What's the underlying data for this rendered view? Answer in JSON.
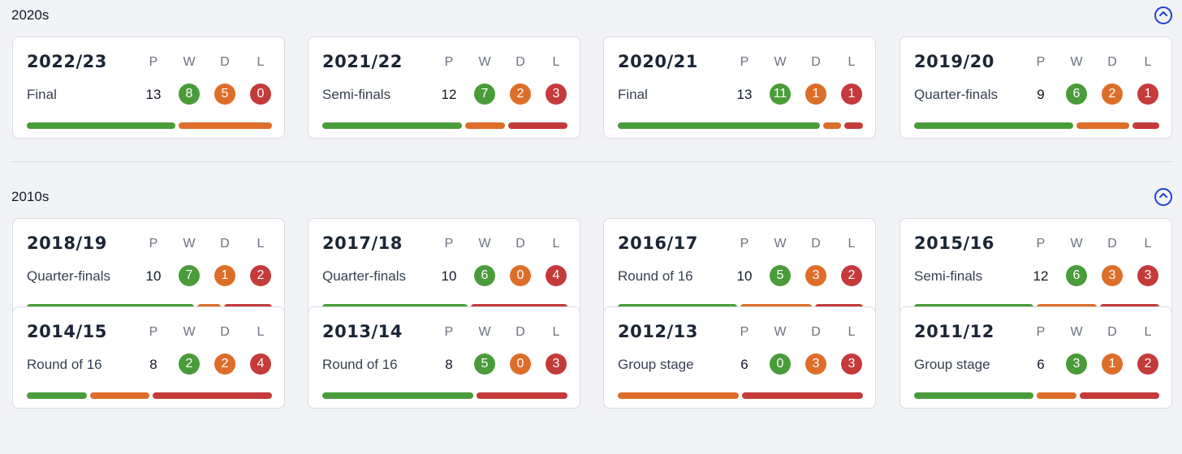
{
  "headers": {
    "p": "P",
    "w": "W",
    "d": "D",
    "l": "L"
  },
  "colors": {
    "win": "#4a9c3a",
    "draw": "#dd6e2a",
    "loss": "#c53a3a",
    "accent": "#1d3fd6"
  },
  "sections": [
    {
      "decade": "2020s",
      "toggle_icon": "chevron-up-icon",
      "seasons": [
        {
          "season": "2022/23",
          "stage": "Final",
          "p": "13",
          "w": "8",
          "d": "5",
          "l": "0"
        },
        {
          "season": "2021/22",
          "stage": "Semi-finals",
          "p": "12",
          "w": "7",
          "d": "2",
          "l": "3"
        },
        {
          "season": "2020/21",
          "stage": "Final",
          "p": "13",
          "w": "11",
          "d": "1",
          "l": "1"
        },
        {
          "season": "2019/20",
          "stage": "Quarter-finals",
          "p": "9",
          "w": "6",
          "d": "2",
          "l": "1"
        }
      ]
    },
    {
      "decade": "2010s",
      "toggle_icon": "chevron-up-icon",
      "seasons": [
        {
          "season": "2018/19",
          "stage": "Quarter-finals",
          "p": "10",
          "w": "7",
          "d": "1",
          "l": "2"
        },
        {
          "season": "2017/18",
          "stage": "Quarter-finals",
          "p": "10",
          "w": "6",
          "d": "0",
          "l": "4"
        },
        {
          "season": "2016/17",
          "stage": "Round of 16",
          "p": "10",
          "w": "5",
          "d": "3",
          "l": "2"
        },
        {
          "season": "2015/16",
          "stage": "Semi-finals",
          "p": "12",
          "w": "6",
          "d": "3",
          "l": "3"
        },
        {
          "season": "2014/15",
          "stage": "Round of 16",
          "p": "8",
          "w": "2",
          "d": "2",
          "l": "4"
        },
        {
          "season": "2013/14",
          "stage": "Round of 16",
          "p": "8",
          "w": "5",
          "d": "0",
          "l": "3"
        },
        {
          "season": "2012/13",
          "stage": "Group stage",
          "p": "6",
          "w": "0",
          "d": "3",
          "l": "3"
        },
        {
          "season": "2011/12",
          "stage": "Group stage",
          "p": "6",
          "w": "3",
          "d": "1",
          "l": "2"
        }
      ]
    }
  ]
}
